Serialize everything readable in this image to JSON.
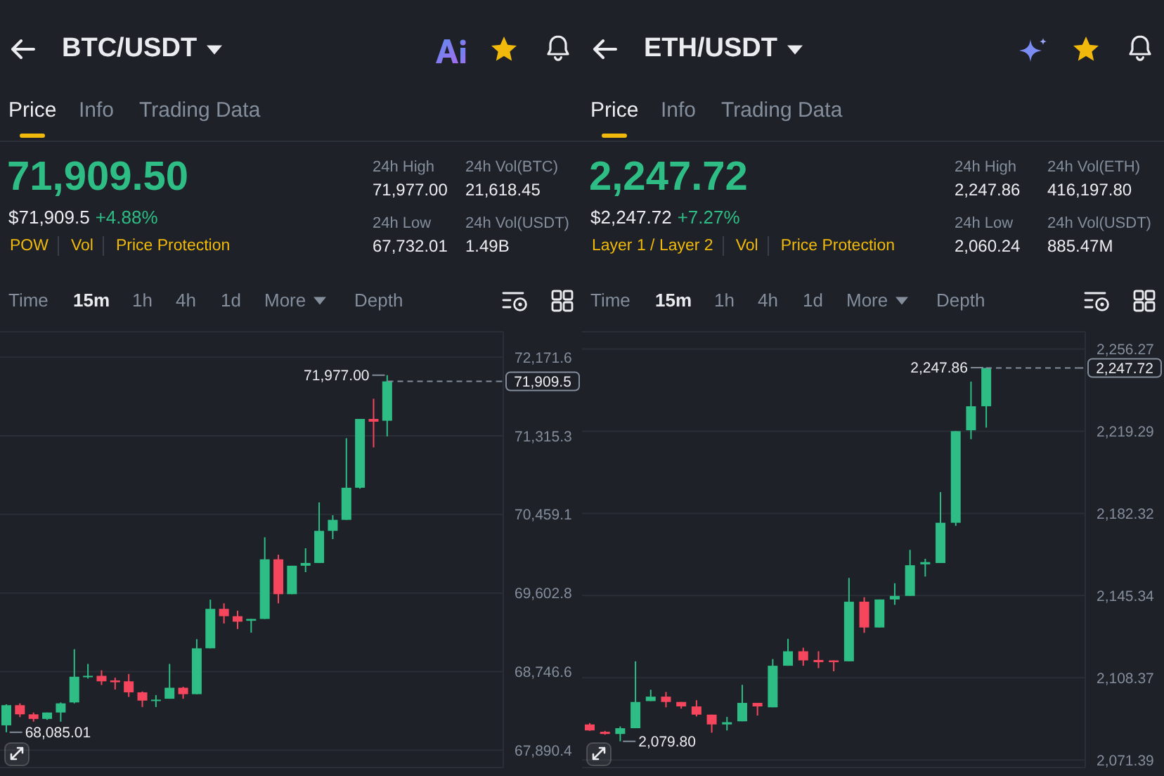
{
  "chart_data": [
    {
      "type": "candlestick",
      "title": "BTC/USDT",
      "categories": [
        null,
        null,
        null,
        null,
        null,
        null,
        null,
        null,
        null,
        null,
        null,
        null,
        null,
        null,
        null,
        null,
        null,
        null,
        null,
        null,
        null,
        null,
        null,
        null,
        null,
        null,
        null,
        null,
        null,
        null,
        null,
        null,
        null,
        null,
        null,
        null,
        null
      ],
      "ohlc": [
        [
          68160,
          68390,
          68085.01,
          68380
        ],
        [
          68380,
          68400,
          68250,
          68280
        ],
        [
          68280,
          68300,
          68200,
          68230
        ],
        [
          68230,
          68300,
          68220,
          68300
        ],
        [
          68300,
          68410,
          68200,
          68400
        ],
        [
          68410,
          68990,
          68400,
          68690
        ],
        [
          68690,
          68830,
          68670,
          68700
        ],
        [
          68700,
          68760,
          68600,
          68640
        ],
        [
          68650,
          68680,
          68550,
          68630
        ],
        [
          68640,
          68720,
          68470,
          68520
        ],
        [
          68520,
          68530,
          68360,
          68430
        ],
        [
          68430,
          68490,
          68360,
          68440
        ],
        [
          68450,
          68830,
          68450,
          68570
        ],
        [
          68570,
          68580,
          68450,
          68500
        ],
        [
          68500,
          69100,
          68500,
          69000
        ],
        [
          69000,
          69530,
          69000,
          69430
        ],
        [
          69430,
          69490,
          69270,
          69350
        ],
        [
          69350,
          69410,
          69210,
          69290
        ],
        [
          69300,
          69320,
          69170,
          69320
        ],
        [
          69320,
          70210,
          69320,
          69970
        ],
        [
          69970,
          70020,
          69490,
          69590
        ],
        [
          69590,
          69900,
          69590,
          69900
        ],
        [
          69900,
          70090,
          69830,
          69930
        ],
        [
          69930,
          70590,
          69930,
          70280
        ],
        [
          70280,
          70450,
          70190,
          70400
        ],
        [
          70400,
          71290,
          70400,
          70750
        ],
        [
          70750,
          71500,
          70740,
          71500
        ],
        [
          71500,
          71720,
          71190,
          71470
        ],
        [
          71480,
          71977,
          71310,
          71909.5
        ],
        null,
        null,
        null,
        null,
        null,
        null,
        null,
        null
      ],
      "colors": [
        "#2ebd85",
        "#f6465d",
        "#f6465d",
        "#2ebd85",
        "#2ebd85",
        "#2ebd85",
        "#2ebd85",
        "#f6465d",
        "#f6465d",
        "#f6465d",
        "#f6465d",
        "#2ebd85",
        "#2ebd85",
        "#f6465d",
        "#2ebd85",
        "#2ebd85",
        "#f6465d",
        "#f6465d",
        "#2ebd85",
        "#2ebd85",
        "#f6465d",
        "#2ebd85",
        "#2ebd85",
        "#2ebd85",
        "#2ebd85",
        "#2ebd85",
        "#2ebd85",
        "#f6465d",
        "#2ebd85",
        null,
        null,
        null,
        null,
        null,
        null,
        null,
        null
      ],
      "ylim": [
        67700,
        72450
      ],
      "yticks": [
        {
          "value": 67890.4,
          "label": "67,890.4"
        },
        {
          "value": 68746.6,
          "label": "68,746.6"
        },
        {
          "value": 69602.8,
          "label": "69,602.8"
        },
        {
          "value": 70459.1,
          "label": "70,459.1"
        },
        {
          "value": 71315.3,
          "label": "71,315.3"
        },
        {
          "value": 72171.6,
          "label": "72,171.6"
        }
      ],
      "grid": "y",
      "ref_lines": [
        {
          "axis": "y",
          "value": 71909.5,
          "label": "71,909.5",
          "line_style": "dashed",
          "color": "#848e9c"
        }
      ],
      "annotations": [
        "Price",
        "Info",
        "Trading Data",
        "71,909.50",
        "$71,909.5",
        "+4.88%",
        "POW",
        "Vol",
        "Price Protection",
        "24h High",
        "71,977.00",
        "24h Vol(BTC)",
        "21,618.45",
        "24h Low",
        "67,732.01",
        "24h Vol(USDT)",
        "1.49B",
        "Time",
        "15m",
        "1h",
        "4h",
        "1d",
        "More",
        "Depth",
        "71,977.00",
        "68,085.01"
      ]
    },
    {
      "type": "candlestick",
      "title": "ETH/USDT",
      "categories": [
        null,
        null,
        null,
        null,
        null,
        null,
        null,
        null,
        null,
        null,
        null,
        null,
        null,
        null,
        null,
        null,
        null,
        null,
        null,
        null,
        null,
        null,
        null,
        null,
        null,
        null,
        null,
        null,
        null,
        null,
        null,
        null,
        null
      ],
      "ohlc": [
        [
          2087.4,
          2088.0,
          2084.5,
          2084.7
        ],
        [
          2084.1,
          2084.5,
          2082.8,
          2083.1
        ],
        [
          2083.1,
          2086.5,
          2079.8,
          2085.7
        ],
        [
          2085.7,
          2115.8,
          2085.7,
          2097.5
        ],
        [
          2097.9,
          2103.0,
          2097.9,
          2099.9
        ],
        [
          2099.9,
          2102.0,
          2095.1,
          2097.5
        ],
        [
          2097.5,
          2097.5,
          2094.5,
          2095.5
        ],
        [
          2095.5,
          2098.3,
          2091.0,
          2091.8
        ],
        [
          2091.8,
          2091.8,
          2083.7,
          2087.4
        ],
        [
          2087.4,
          2090.8,
          2084.7,
          2088.4
        ],
        [
          2088.8,
          2105.2,
          2088.8,
          2097.1
        ],
        [
          2097.1,
          2097.1,
          2091.4,
          2095.5
        ],
        [
          2095.1,
          2116.8,
          2095.1,
          2113.8
        ],
        [
          2113.8,
          2125.9,
          2113.8,
          2120.3
        ],
        [
          2120.3,
          2121.9,
          2113.8,
          2116.2
        ],
        [
          2116.4,
          2120.3,
          2112.7,
          2115.4
        ],
        [
          2116.2,
          2116.2,
          2111.3,
          2115.4
        ],
        [
          2115.8,
          2153.3,
          2115.8,
          2142.6
        ],
        [
          2142.6,
          2144.6,
          2128.6,
          2131.0
        ],
        [
          2131.0,
          2143.6,
          2131.0,
          2143.6
        ],
        [
          2143.6,
          2150.9,
          2141.2,
          2145.2
        ],
        [
          2145.2,
          2165.9,
          2145.2,
          2159.0
        ],
        [
          2159.4,
          2161.9,
          2153.9,
          2160.4
        ],
        [
          2160.0,
          2191.9,
          2160.0,
          2178.1
        ],
        [
          2178.1,
          2219.3,
          2176.7,
          2219.3
        ],
        [
          2219.7,
          2241.6,
          2215.7,
          2230.5
        ],
        [
          2230.5,
          2247.86,
          2220.9,
          2247.72
        ],
        null,
        null,
        null,
        null,
        null,
        null
      ],
      "colors": [
        "#f6465d",
        "#f6465d",
        "#2ebd85",
        "#2ebd85",
        "#2ebd85",
        "#f6465d",
        "#f6465d",
        "#f6465d",
        "#f6465d",
        "#2ebd85",
        "#2ebd85",
        "#f6465d",
        "#2ebd85",
        "#2ebd85",
        "#f6465d",
        "#f6465d",
        "#f6465d",
        "#2ebd85",
        "#f6465d",
        "#2ebd85",
        "#2ebd85",
        "#2ebd85",
        "#2ebd85",
        "#2ebd85",
        "#2ebd85",
        "#2ebd85",
        "#2ebd85",
        null,
        null,
        null,
        null,
        null,
        null
      ],
      "ylim": [
        2068,
        2264
      ],
      "yticks": [
        {
          "value": 2071.39,
          "label": "2,071.39"
        },
        {
          "value": 2108.37,
          "label": "2,108.37"
        },
        {
          "value": 2145.34,
          "label": "2,145.34"
        },
        {
          "value": 2182.32,
          "label": "2,182.32"
        },
        {
          "value": 2219.29,
          "label": "2,219.29"
        },
        {
          "value": 2256.27,
          "label": "2,256.27"
        }
      ],
      "grid": "y",
      "ref_lines": [
        {
          "axis": "y",
          "value": 2247.72,
          "label": "2,247.72",
          "line_style": "dashed",
          "color": "#848e9c"
        }
      ],
      "annotations": [
        "Price",
        "Info",
        "Trading Data",
        "2,247.72",
        "$2,247.72",
        "+7.27%",
        "Layer 1 / Layer 2",
        "Vol",
        "Price Protection",
        "24h High",
        "2,247.86",
        "24h Vol(ETH)",
        "416,197.80",
        "24h Low",
        "2,060.24",
        "24h Vol(USDT)",
        "885.47M",
        "Time",
        "15m",
        "1h",
        "4h",
        "1d",
        "More",
        "Depth",
        "2,247.86",
        "2,079.80"
      ]
    }
  ]
}
